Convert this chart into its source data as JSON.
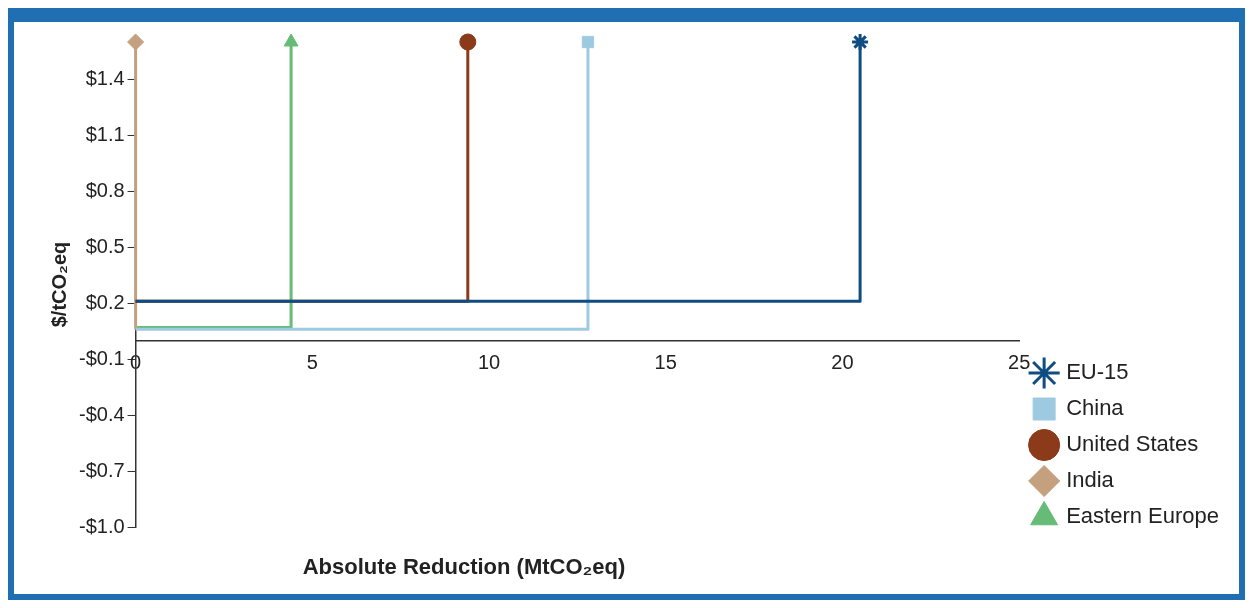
{
  "chart_data": {
    "type": "step",
    "xlabel": "Absolute Reduction (MtCO₂eq)",
    "ylabel": "$/tCO₂eq",
    "xlim": [
      0,
      25
    ],
    "xticks": [
      0,
      5,
      10,
      15,
      20,
      25
    ],
    "ylim": [
      -1.0,
      1.6
    ],
    "yticks": [
      {
        "value": -1.0,
        "label": "-$1.0"
      },
      {
        "value": -0.7,
        "label": "-$0.7"
      },
      {
        "value": -0.4,
        "label": "-$0.4"
      },
      {
        "value": -0.1,
        "label": "-$0.1"
      },
      {
        "value": 0.2,
        "label": "$0.2"
      },
      {
        "value": 0.5,
        "label": "$0.5"
      },
      {
        "value": 0.8,
        "label": "$0.8"
      },
      {
        "value": 1.1,
        "label": "$1.1"
      },
      {
        "value": 1.4,
        "label": "$1.4"
      }
    ],
    "grid": false,
    "legend": "bottom right",
    "series": [
      {
        "name": "EU-15",
        "color": "#0f4c81",
        "marker": "cross",
        "x": [
          0,
          20.5
        ],
        "values": [
          0.21,
          1.6
        ]
      },
      {
        "name": "China",
        "color": "#9ecae1",
        "marker": "square",
        "x": [
          0,
          12.8
        ],
        "values": [
          0.06,
          1.6
        ]
      },
      {
        "name": "United States",
        "color": "#8b3a1a",
        "marker": "circle",
        "x": [
          0,
          9.4
        ],
        "values": [
          0.21,
          1.6
        ]
      },
      {
        "name": "India",
        "color": "#c4a07f",
        "marker": "diamond",
        "x": [
          0,
          0
        ],
        "values": [
          0.06,
          1.6
        ]
      },
      {
        "name": "Eastern Europe",
        "color": "#66bb77",
        "marker": "triangle",
        "x": [
          0,
          4.4
        ],
        "values": [
          0.07,
          1.6
        ]
      }
    ]
  }
}
